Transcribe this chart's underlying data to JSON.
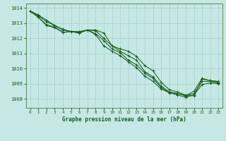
{
  "title": "Graphe pression niveau de la mer (hPa)",
  "background_color": "#c5e8e5",
  "grid_color_major": "#a8d0cc",
  "grid_color_minor": "#b8dbd8",
  "line_color": "#1a5c1a",
  "xlim": [
    -0.5,
    23.5
  ],
  "ylim": [
    1007.4,
    1014.3
  ],
  "yticks": [
    1008,
    1009,
    1010,
    1011,
    1012,
    1013,
    1014
  ],
  "xticks": [
    0,
    1,
    2,
    3,
    4,
    5,
    6,
    7,
    8,
    9,
    10,
    11,
    12,
    13,
    14,
    15,
    16,
    17,
    18,
    19,
    20,
    21,
    22,
    23
  ],
  "series": [
    [
      1013.8,
      1013.55,
      1013.2,
      1012.85,
      1012.6,
      1012.45,
      1012.35,
      1012.55,
      1012.55,
      1012.35,
      1011.5,
      1011.3,
      1011.15,
      1010.8,
      1010.2,
      1009.85,
      1009.1,
      1008.6,
      1008.45,
      1008.25,
      1008.2,
      1009.3,
      1009.2,
      1009.15
    ],
    [
      1013.8,
      1013.5,
      1013.1,
      1012.85,
      1012.55,
      1012.45,
      1012.35,
      1012.55,
      1012.5,
      1012.0,
      1011.5,
      1011.15,
      1010.85,
      1010.55,
      1009.8,
      1009.45,
      1008.85,
      1008.45,
      1008.35,
      1008.2,
      1008.5,
      1009.35,
      1009.2,
      1009.1
    ],
    [
      1013.8,
      1013.4,
      1012.9,
      1012.75,
      1012.4,
      1012.45,
      1012.45,
      1012.55,
      1012.3,
      1011.85,
      1011.3,
      1011.05,
      1010.55,
      1010.25,
      1009.7,
      1009.35,
      1008.75,
      1008.4,
      1008.35,
      1008.2,
      1008.35,
      1009.15,
      1009.15,
      1009.05
    ],
    [
      1013.8,
      1013.4,
      1012.85,
      1012.7,
      1012.4,
      1012.45,
      1012.4,
      1012.55,
      1012.25,
      1011.5,
      1011.15,
      1010.85,
      1010.45,
      1010.05,
      1009.5,
      1009.15,
      1008.65,
      1008.4,
      1008.25,
      1008.1,
      1008.25,
      1008.95,
      1009.05,
      1009.0
    ]
  ]
}
